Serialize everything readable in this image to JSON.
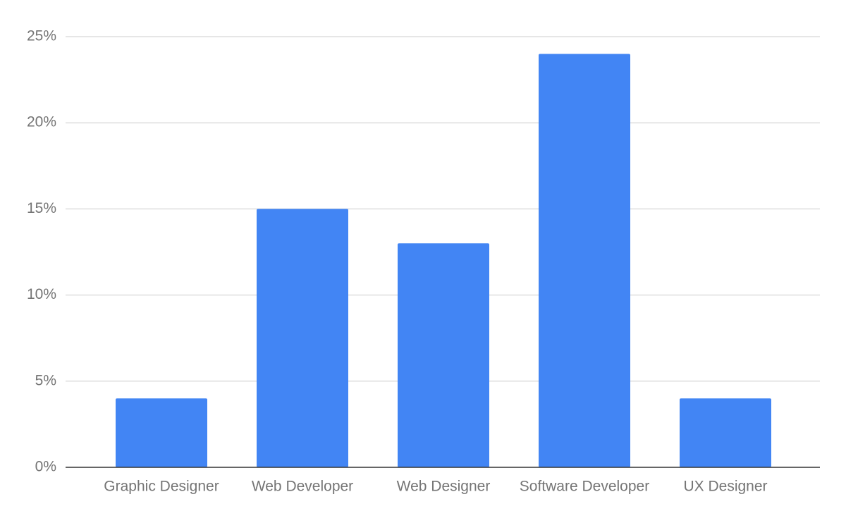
{
  "chart_data": {
    "type": "bar",
    "categories": [
      "Graphic Designer",
      "Web Developer",
      "Web Designer",
      "Software Developer",
      "UX Designer"
    ],
    "values": [
      4,
      15,
      13,
      24,
      4
    ],
    "color": "#4285f4",
    "ylim": [
      0,
      25
    ],
    "yticks": [
      {
        "value": 0,
        "label": "0%"
      },
      {
        "value": 5,
        "label": "5%"
      },
      {
        "value": 10,
        "label": "10%"
      },
      {
        "value": 15,
        "label": "15%"
      },
      {
        "value": 20,
        "label": "20%"
      },
      {
        "value": 25,
        "label": "25%"
      }
    ],
    "grid": true
  }
}
